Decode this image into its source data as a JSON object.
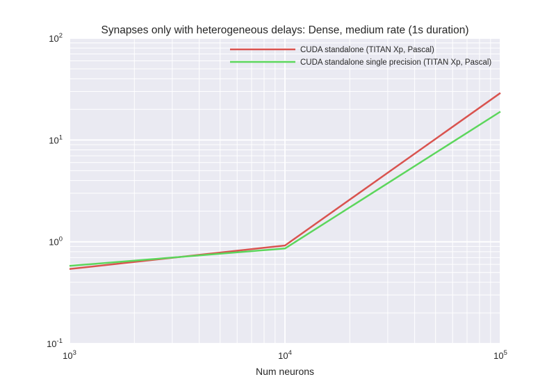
{
  "chart_data": {
    "type": "line",
    "title": "Synapses only with heterogeneous delays: Dense, medium rate (1s duration)",
    "xlabel": "Num neurons",
    "ylabel": "",
    "xscale": "log",
    "yscale": "log",
    "xlim": [
      1000,
      100000
    ],
    "ylim": [
      0.1,
      100
    ],
    "xticks": [
      {
        "value": 1000,
        "base": "10",
        "exp": "3"
      },
      {
        "value": 10000,
        "base": "10",
        "exp": "4"
      },
      {
        "value": 100000,
        "base": "10",
        "exp": "5"
      }
    ],
    "yticks": [
      {
        "value": 0.1,
        "base": "10",
        "exp": "-1"
      },
      {
        "value": 1,
        "base": "10",
        "exp": "0"
      },
      {
        "value": 10,
        "base": "10",
        "exp": "1"
      },
      {
        "value": 100,
        "base": "10",
        "exp": "2"
      }
    ],
    "grid": true,
    "legend_position": "top-right",
    "series": [
      {
        "name": "CUDA standalone (TITAN Xp, Pascal)",
        "color": "#d9534f",
        "x": [
          1000,
          10000,
          100000
        ],
        "y": [
          0.54,
          0.92,
          29
        ]
      },
      {
        "name": "CUDA standalone single precision (TITAN Xp, Pascal)",
        "color": "#5cd65c",
        "x": [
          1000,
          10000,
          100000
        ],
        "y": [
          0.58,
          0.86,
          19
        ]
      }
    ]
  },
  "colors": {
    "plot_background": "#eaeaf2",
    "grid": "#ffffff",
    "text": "#262626"
  }
}
